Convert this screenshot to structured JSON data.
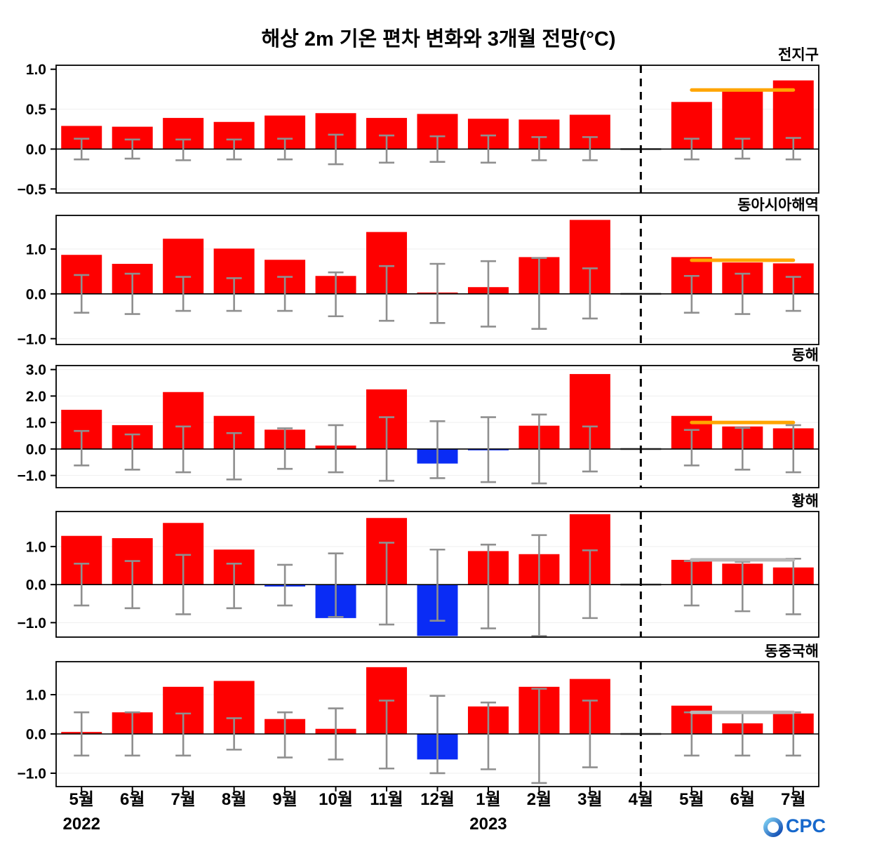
{
  "title": "해상 2m 기온 편차 변화와 3개월 전망(°C)",
  "logo": {
    "text": "OCPC"
  },
  "x_axis": {
    "labels": [
      "5월",
      "6월",
      "7월",
      "8월",
      "9월",
      "10월",
      "11월",
      "12월",
      "1월",
      "2월",
      "3월",
      "4월",
      "5월",
      "6월",
      "7월"
    ],
    "year_left": "2022",
    "year_right": "2023",
    "divider_index": 11,
    "forecast_start_index": 12
  },
  "colors": {
    "positive": "#fe0000",
    "negative": "#0a2cf5",
    "errorbar": "#8f8f8f",
    "zero_bar": "#999999",
    "forecast_orange": "#ffa500",
    "forecast_gray": "#b8b8b8",
    "divider": "#000000",
    "grid": "#efefef",
    "axis": "#000000"
  },
  "chart_data": [
    {
      "type": "bar",
      "title": "전지구",
      "categories": [
        "5월",
        "6월",
        "7월",
        "8월",
        "9월",
        "10월",
        "11월",
        "12월",
        "1월",
        "2월",
        "3월",
        "4월",
        "5월",
        "6월",
        "7월"
      ],
      "values": [
        0.29,
        0.28,
        0.39,
        0.34,
        0.42,
        0.45,
        0.39,
        0.44,
        0.38,
        0.37,
        0.43,
        0.0,
        0.59,
        0.72,
        0.86
      ],
      "error_bars": [
        [
          -0.13,
          0.13
        ],
        [
          -0.12,
          0.12
        ],
        [
          -0.14,
          0.12
        ],
        [
          -0.13,
          0.12
        ],
        [
          -0.13,
          0.13
        ],
        [
          -0.19,
          0.18
        ],
        [
          -0.17,
          0.17
        ],
        [
          -0.16,
          0.16
        ],
        [
          -0.17,
          0.17
        ],
        [
          -0.14,
          0.15
        ],
        [
          -0.14,
          0.15
        ],
        null,
        [
          -0.13,
          0.13
        ],
        [
          -0.12,
          0.13
        ],
        [
          -0.13,
          0.14
        ]
      ],
      "yticks": [
        -0.5,
        0.0,
        0.5,
        1.0
      ],
      "ylim": [
        -0.55,
        1.05
      ],
      "forecast_ref": {
        "value": 0.74,
        "color": "orange"
      }
    },
    {
      "type": "bar",
      "title": "동아시아해역",
      "categories": [
        "5월",
        "6월",
        "7월",
        "8월",
        "9월",
        "10월",
        "11월",
        "12월",
        "1월",
        "2월",
        "3월",
        "4월",
        "5월",
        "6월",
        "7월"
      ],
      "values": [
        0.87,
        0.67,
        1.23,
        1.01,
        0.76,
        0.4,
        1.38,
        0.03,
        0.15,
        0.82,
        1.65,
        0.0,
        0.82,
        0.7,
        0.68
      ],
      "error_bars": [
        [
          -0.42,
          0.42
        ],
        [
          -0.45,
          0.45
        ],
        [
          -0.38,
          0.38
        ],
        [
          -0.38,
          0.35
        ],
        [
          -0.38,
          0.38
        ],
        [
          -0.5,
          0.48
        ],
        [
          -0.6,
          0.62
        ],
        [
          -0.65,
          0.67
        ],
        [
          -0.73,
          0.73
        ],
        [
          -0.78,
          0.8
        ],
        [
          -0.55,
          0.57
        ],
        null,
        [
          -0.42,
          0.4
        ],
        [
          -0.45,
          0.45
        ],
        [
          -0.38,
          0.38
        ]
      ],
      "yticks": [
        -1.0,
        0.0,
        1.0
      ],
      "ylim": [
        -1.13,
        1.75
      ],
      "forecast_ref": {
        "value": 0.75,
        "color": "orange"
      }
    },
    {
      "type": "bar",
      "title": "동해",
      "categories": [
        "5월",
        "6월",
        "7월",
        "8월",
        "9월",
        "10월",
        "11월",
        "12월",
        "1월",
        "2월",
        "3월",
        "4월",
        "5월",
        "6월",
        "7월"
      ],
      "values": [
        1.48,
        0.9,
        2.15,
        1.25,
        0.73,
        0.13,
        2.25,
        -0.55,
        -0.05,
        0.88,
        2.83,
        0.0,
        1.25,
        0.85,
        0.78
      ],
      "error_bars": [
        [
          -0.62,
          0.68
        ],
        [
          -0.78,
          0.55
        ],
        [
          -0.88,
          0.85
        ],
        [
          -1.15,
          0.6
        ],
        [
          -0.75,
          0.78
        ],
        [
          -0.88,
          0.9
        ],
        [
          -1.2,
          1.2
        ],
        [
          -1.1,
          1.05
        ],
        [
          -1.25,
          1.2
        ],
        [
          -1.3,
          1.3
        ],
        [
          -0.85,
          0.85
        ],
        null,
        [
          -0.62,
          0.72
        ],
        [
          -0.78,
          0.8
        ],
        [
          -0.88,
          0.9
        ]
      ],
      "yticks": [
        -1.0,
        0.0,
        1.0,
        2.0,
        3.0
      ],
      "ylim": [
        -1.46,
        3.15
      ],
      "forecast_ref": {
        "value": 1.0,
        "color": "orange"
      }
    },
    {
      "type": "bar",
      "title": "황해",
      "categories": [
        "5월",
        "6월",
        "7월",
        "8월",
        "9월",
        "10월",
        "11월",
        "12월",
        "1월",
        "2월",
        "3월",
        "4월",
        "5월",
        "6월",
        "7월"
      ],
      "values": [
        1.28,
        1.22,
        1.62,
        0.92,
        -0.05,
        -0.88,
        1.75,
        -1.35,
        0.88,
        0.8,
        1.85,
        0.0,
        0.65,
        0.55,
        0.45
      ],
      "error_bars": [
        [
          -0.55,
          0.55
        ],
        [
          -0.62,
          0.62
        ],
        [
          -0.78,
          0.78
        ],
        [
          -0.62,
          0.55
        ],
        [
          -0.55,
          0.52
        ],
        [
          -0.85,
          0.82
        ],
        [
          -1.05,
          1.1
        ],
        [
          -0.95,
          0.92
        ],
        [
          -1.15,
          1.05
        ],
        [
          -1.35,
          1.3
        ],
        [
          -0.88,
          0.9
        ],
        null,
        [
          -0.55,
          0.62
        ],
        [
          -0.7,
          0.6
        ],
        [
          -0.78,
          0.68
        ]
      ],
      "yticks": [
        -1.0,
        0.0,
        1.0
      ],
      "ylim": [
        -1.38,
        1.92
      ],
      "forecast_ref": {
        "value": 0.65,
        "color": "gray"
      }
    },
    {
      "type": "bar",
      "title": "동중국해",
      "categories": [
        "5월",
        "6월",
        "7월",
        "8월",
        "9월",
        "10월",
        "11월",
        "12월",
        "1월",
        "2월",
        "3월",
        "4월",
        "5월",
        "6월",
        "7월"
      ],
      "values": [
        0.05,
        0.55,
        1.2,
        1.35,
        0.38,
        0.13,
        1.7,
        -0.65,
        0.7,
        1.2,
        1.4,
        0.0,
        0.72,
        0.27,
        0.52
      ],
      "error_bars": [
        [
          -0.55,
          0.55
        ],
        [
          -0.55,
          0.55
        ],
        [
          -0.55,
          0.52
        ],
        [
          -0.4,
          0.4
        ],
        [
          -0.6,
          0.55
        ],
        [
          -0.65,
          0.65
        ],
        [
          -0.88,
          0.85
        ],
        [
          -1.0,
          0.97
        ],
        [
          -0.9,
          0.8
        ],
        [
          -1.25,
          1.15
        ],
        [
          -0.85,
          0.85
        ],
        null,
        [
          -0.55,
          0.55
        ],
        [
          -0.55,
          0.55
        ],
        [
          -0.55,
          0.55
        ]
      ],
      "yticks": [
        -1.0,
        0.0,
        1.0
      ],
      "ylim": [
        -1.34,
        1.84
      ],
      "forecast_ref": {
        "value": 0.55,
        "color": "gray"
      }
    }
  ]
}
